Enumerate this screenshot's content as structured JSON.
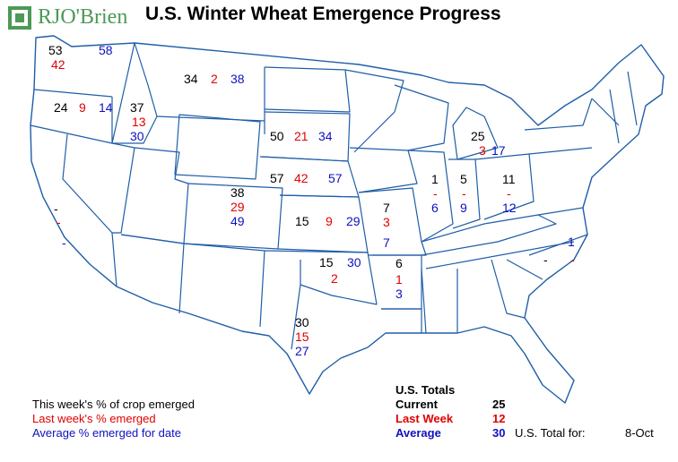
{
  "brand": {
    "name": "RJO'Brien",
    "color": "#4c9a55"
  },
  "title": "U.S. Winter Wheat Emergence Progress",
  "colors": {
    "current": "#000000",
    "last_week": "#e00000",
    "average": "#1010c0",
    "border": "#1f5ea8"
  },
  "states": [
    {
      "id": "WA",
      "current": "53",
      "last_week": "42",
      "average": "58"
    },
    {
      "id": "OR",
      "current": "24",
      "last_week": "9",
      "average": "14"
    },
    {
      "id": "ID",
      "current": "37",
      "last_week": "13",
      "average": "30"
    },
    {
      "id": "MT",
      "current": "34",
      "last_week": "2",
      "average": "38"
    },
    {
      "id": "SD",
      "current": "50",
      "last_week": "21",
      "average": "34"
    },
    {
      "id": "NE",
      "current": "57",
      "last_week": "42",
      "average": "57"
    },
    {
      "id": "CO",
      "current": "38",
      "last_week": "29",
      "average": "49"
    },
    {
      "id": "KS",
      "current": "15",
      "last_week": "9",
      "average": "29"
    },
    {
      "id": "OK",
      "current": "15",
      "last_week": "2",
      "average": "30"
    },
    {
      "id": "TX",
      "current": "30",
      "last_week": "15",
      "average": "27"
    },
    {
      "id": "CA",
      "current": "-",
      "last_week": "-",
      "average": "-"
    },
    {
      "id": "MO",
      "current": "7",
      "last_week": "3",
      "average": "7"
    },
    {
      "id": "AR",
      "current": "6",
      "last_week": "1",
      "average": "3"
    },
    {
      "id": "IL",
      "current": "1",
      "last_week": "-",
      "average": "6"
    },
    {
      "id": "IN",
      "current": "5",
      "last_week": "-",
      "average": "9"
    },
    {
      "id": "OH",
      "current": "11",
      "last_week": "-",
      "average": "12"
    },
    {
      "id": "MI",
      "current": "25",
      "last_week": "3",
      "average": "17"
    },
    {
      "id": "NC",
      "current": "-",
      "last_week": "-",
      "average": "1"
    }
  ],
  "legend": {
    "current": "This week's % of crop emerged",
    "last_week": "Last week's % emerged",
    "average": "Average % emerged for date"
  },
  "totals": {
    "heading": "U.S. Totals",
    "current_label": "Current",
    "current_value": "25",
    "last_week_label": "Last Week",
    "last_week_value": "12",
    "average_label": "Average",
    "average_value": "30",
    "total_for_label": "U.S. Total for:",
    "date": "8-Oct"
  }
}
